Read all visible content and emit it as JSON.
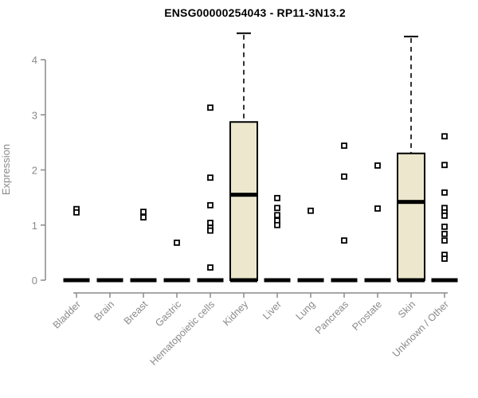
{
  "chart_data": {
    "type": "boxplot",
    "title": "ENSG00000254043 - RP11-3N13.2",
    "ylabel": "Expression",
    "xlabel": "",
    "ylim": [
      0,
      4.5
    ],
    "yticks": [
      0,
      1,
      2,
      3,
      4
    ],
    "grid": false,
    "legend": null,
    "categories": [
      "Bladder",
      "Brain",
      "Breast",
      "Gastric",
      "Hematopoietic cells",
      "Kidney",
      "Liver",
      "Lung",
      "Pancreas",
      "Prostate",
      "Skin",
      "Unknown / Other"
    ],
    "series": [
      {
        "category": "Bladder",
        "q1": 0,
        "median": 0,
        "q3": 0,
        "whisker_low": 0,
        "whisker_high": 0,
        "outliers": [
          1.29,
          1.23
        ]
      },
      {
        "category": "Brain",
        "q1": 0,
        "median": 0,
        "q3": 0,
        "whisker_low": 0,
        "whisker_high": 0,
        "outliers": []
      },
      {
        "category": "Breast",
        "q1": 0,
        "median": 0,
        "q3": 0,
        "whisker_low": 0,
        "whisker_high": 0,
        "outliers": [
          1.24,
          1.14
        ]
      },
      {
        "category": "Gastric",
        "q1": 0,
        "median": 0,
        "q3": 0,
        "whisker_low": 0,
        "whisker_high": 0,
        "outliers": [
          0.68
        ]
      },
      {
        "category": "Hematopoietic cells",
        "q1": 0,
        "median": 0,
        "q3": 0,
        "whisker_low": 0,
        "whisker_high": 0,
        "outliers": [
          3.13,
          1.86,
          1.36,
          1.04,
          0.95,
          0.9,
          0.23
        ]
      },
      {
        "category": "Kidney",
        "q1": 0,
        "median": 1.55,
        "q3": 2.87,
        "whisker_low": 0,
        "whisker_high": 4.48,
        "outliers": []
      },
      {
        "category": "Liver",
        "q1": 0,
        "median": 0,
        "q3": 0,
        "whisker_low": 0,
        "whisker_high": 0,
        "outliers": [
          1.49,
          1.31,
          1.18,
          1.08,
          1.0
        ]
      },
      {
        "category": "Lung",
        "q1": 0,
        "median": 0,
        "q3": 0,
        "whisker_low": 0,
        "whisker_high": 0,
        "outliers": [
          1.26
        ]
      },
      {
        "category": "Pancreas",
        "q1": 0,
        "median": 0,
        "q3": 0,
        "whisker_low": 0,
        "whisker_high": 0,
        "outliers": [
          2.44,
          1.88,
          0.72
        ]
      },
      {
        "category": "Prostate",
        "q1": 0,
        "median": 0,
        "q3": 0,
        "whisker_low": 0,
        "whisker_high": 0,
        "outliers": [
          2.08,
          1.3
        ]
      },
      {
        "category": "Skin",
        "q1": 0,
        "median": 1.42,
        "q3": 2.3,
        "whisker_low": 0,
        "whisker_high": 4.42,
        "outliers": []
      },
      {
        "category": "Unknown / Other",
        "q1": 0,
        "median": 0,
        "q3": 0,
        "whisker_low": 0,
        "whisker_high": 0,
        "outliers": [
          2.61,
          2.09,
          1.59,
          1.31,
          1.23,
          1.17,
          0.97,
          0.84,
          0.72,
          0.46,
          0.39
        ]
      }
    ],
    "colors": {
      "box_fill": "#ece7cd",
      "box_border": "#000000",
      "median": "#000000",
      "outlier_border": "#000000",
      "outlier_fill": "#ffffff",
      "axis": "#8a8a8a",
      "tick_label": "#8a8a8a",
      "title": "#000000",
      "background": "#ffffff"
    }
  }
}
